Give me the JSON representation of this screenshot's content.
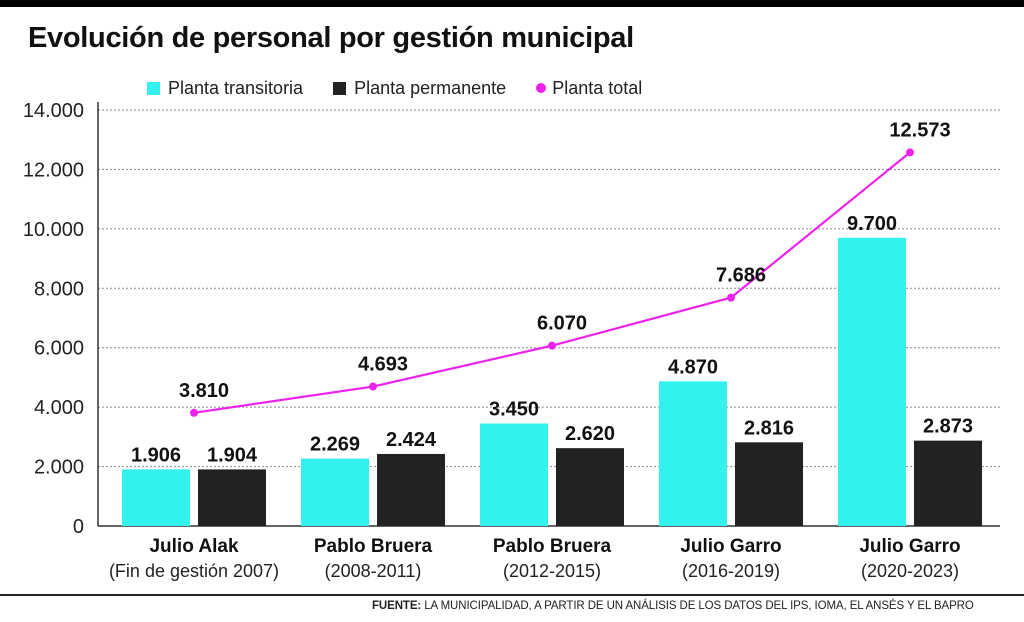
{
  "title": "Evolución de personal por gestión municipal",
  "legend": {
    "transitoria": "Planta transitoria",
    "permanente": "Planta permanente",
    "total": "Planta total"
  },
  "source": {
    "label": "FUENTE:",
    "text": "LA MUNICIPALIDAD, A PARTIR DE UN ANÁLISIS DE LOS DATOS DEL IPS, IOMA, EL ANSÉS Y EL BAPRO"
  },
  "colors": {
    "transitoria": "#33f2ee",
    "permanente": "#222222",
    "total": "#ee22ee",
    "grid": "#888888"
  },
  "chart_data": {
    "type": "bar",
    "categories": [
      {
        "name": "Julio Alak",
        "period": "(Fin de gestión 2007)"
      },
      {
        "name": "Pablo Bruera",
        "period": "(2008-2011)"
      },
      {
        "name": "Pablo Bruera",
        "period": "(2012-2015)"
      },
      {
        "name": "Julio Garro",
        "period": "(2016-2019)"
      },
      {
        "name": "Julio Garro",
        "period": "(2020-2023)"
      }
    ],
    "series": [
      {
        "name": "Planta transitoria",
        "kind": "bar",
        "values": [
          1906,
          2269,
          3450,
          4870,
          9700
        ],
        "labels": [
          "1.906",
          "2.269",
          "3.450",
          "4.870",
          "9.700"
        ]
      },
      {
        "name": "Planta permanente",
        "kind": "bar",
        "values": [
          1904,
          2424,
          2620,
          2816,
          2873
        ],
        "labels": [
          "1.904",
          "2.424",
          "2.620",
          "2.816",
          "2.873"
        ]
      },
      {
        "name": "Planta total",
        "kind": "line",
        "values": [
          3810,
          4693,
          6070,
          7686,
          12573
        ],
        "labels": [
          "3.810",
          "4.693",
          "6.070",
          "7.686",
          "12.573"
        ]
      }
    ],
    "ylim": [
      0,
      14000
    ],
    "yticks": [
      0,
      2000,
      4000,
      6000,
      8000,
      10000,
      12000,
      14000
    ],
    "ytick_labels": [
      "0",
      "2.000",
      "4.000",
      "6.000",
      "8.000",
      "10.000",
      "12.000",
      "14.000"
    ],
    "grid": true,
    "legend_position": "top"
  }
}
